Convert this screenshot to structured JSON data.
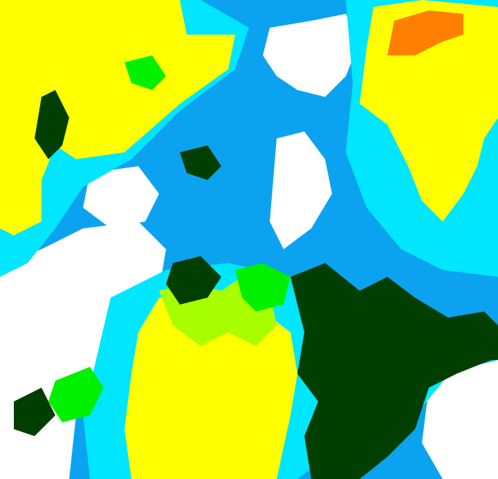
{
  "map": {
    "colors": {
      "background": "#0ba3ef",
      "white": "#ffffff",
      "cyan": "#00e6ff",
      "yellow": "#ffff00",
      "lime": "#a8ff00",
      "green": "#00f000",
      "dark_green": "#003f00",
      "orange": "#ff8000"
    }
  }
}
